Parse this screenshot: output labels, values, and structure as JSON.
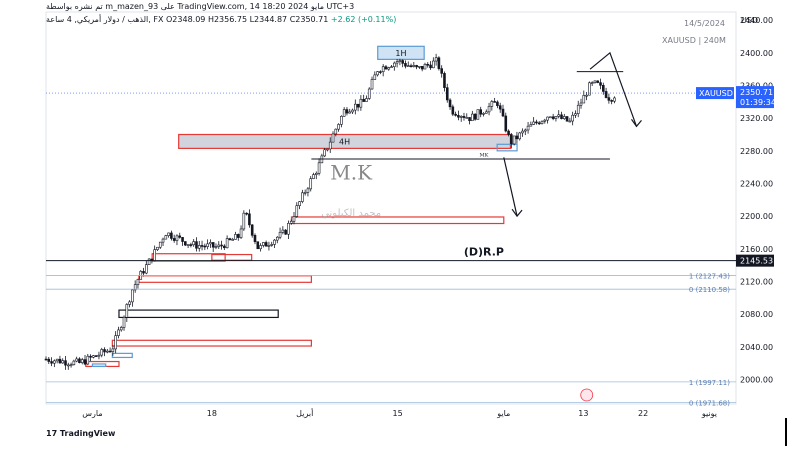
{
  "header": {
    "author_line": "تم نشره بواسطة m_mazen_93 على TradingView.com, 14 مايو 2024 18:20 UTC+3",
    "ohlc_prefix": "الذهب / دولار أمريكي, 4 ساعة, FX",
    "open": "O2348.09",
    "high": "H2356.75",
    "low": "L2344.87",
    "close": "C2350.71",
    "change": "+2.62 (+0.11%)",
    "date_label": "14/5/2024",
    "symbol_label": "XAUUSD | 240M",
    "currency": "USD"
  },
  "footer": {
    "logo_text": "TradingView"
  },
  "colors": {
    "up": "#089981",
    "down": "#f23645",
    "candle": "#131722",
    "zone_red": "#e53935",
    "zone_blue": "#5b9bd5",
    "price_tag": "#2962ff"
  },
  "chart_data": {
    "type": "candlestick",
    "title": "",
    "xlabel": "",
    "ylabel": "USD",
    "ylim": [
      1970,
      2450
    ],
    "y_ticks": [
      2000,
      2040,
      2080,
      2120,
      2160,
      2200,
      2240,
      2280,
      2320,
      2360,
      2400,
      2440
    ],
    "x_ticks": [
      "مارس",
      "18",
      "أبريل",
      "15",
      "مايو",
      "13",
      "22",
      "يونيو"
    ],
    "x_tick_days": [
      -1,
      17,
      31,
      45,
      61,
      73,
      82,
      92
    ],
    "x_range_days": [
      -8,
      96
    ],
    "path_anchors": [
      {
        "day": -8,
        "price": 2025
      },
      {
        "day": -3,
        "price": 2020
      },
      {
        "day": 2,
        "price": 2038
      },
      {
        "day": 3,
        "price": 2060
      },
      {
        "day": 5,
        "price": 2110
      },
      {
        "day": 6,
        "price": 2125
      },
      {
        "day": 8,
        "price": 2150
      },
      {
        "day": 10,
        "price": 2180
      },
      {
        "day": 14,
        "price": 2165
      },
      {
        "day": 18,
        "price": 2162
      },
      {
        "day": 21,
        "price": 2175
      },
      {
        "day": 22,
        "price": 2205
      },
      {
        "day": 24,
        "price": 2160
      },
      {
        "day": 28,
        "price": 2180
      },
      {
        "day": 31,
        "price": 2230
      },
      {
        "day": 33,
        "price": 2260
      },
      {
        "day": 37,
        "price": 2330
      },
      {
        "day": 40,
        "price": 2340
      },
      {
        "day": 42,
        "price": 2380
      },
      {
        "day": 45,
        "price": 2390
      },
      {
        "day": 48,
        "price": 2380
      },
      {
        "day": 51,
        "price": 2390
      },
      {
        "day": 53,
        "price": 2330
      },
      {
        "day": 56,
        "price": 2320
      },
      {
        "day": 60,
        "price": 2340
      },
      {
        "day": 62,
        "price": 2290
      },
      {
        "day": 65,
        "price": 2310
      },
      {
        "day": 68,
        "price": 2325
      },
      {
        "day": 71,
        "price": 2315
      },
      {
        "day": 74,
        "price": 2360
      },
      {
        "day": 75,
        "price": 2362
      },
      {
        "day": 77,
        "price": 2344
      },
      {
        "day": 78,
        "price": 2350.71
      }
    ],
    "last_price": 2350.71,
    "last_price_label": "2350.71",
    "countdown": "01:39:34",
    "symbol_tag": "XAUUSD",
    "level_line": {
      "price": 2145.53,
      "label": "2145.53",
      "text": "(D)R.P"
    },
    "fib_levels": [
      {
        "ratio_label": "1 (2127.43)",
        "price": 2127.43
      },
      {
        "ratio_label": "0 (2110.58)",
        "price": 2110.58
      },
      {
        "ratio_label": "1 (1997.11)",
        "price": 1997.11
      },
      {
        "ratio_label": "0 (1971.68)",
        "price": 1971.68
      }
    ],
    "zones": [
      {
        "kind": "red",
        "d0": 12,
        "d1": 62,
        "p0": 2300,
        "p1": 2283,
        "fill": true,
        "label": "4H"
      },
      {
        "kind": "blue",
        "d0": 42,
        "d1": 49,
        "p0": 2408,
        "p1": 2392,
        "fill": true,
        "label": "1H"
      },
      {
        "kind": "blue",
        "d0": 60,
        "d1": 63,
        "p0": 2288,
        "p1": 2280,
        "fill": false,
        "label": ""
      },
      {
        "kind": "red",
        "d0": 29,
        "d1": 61,
        "p0": 2199,
        "p1": 2191,
        "fill": false,
        "label": ""
      },
      {
        "kind": "red",
        "d0": 8,
        "d1": 19,
        "p0": 2154,
        "p1": 2145,
        "fill": false,
        "label": ""
      },
      {
        "kind": "red",
        "d0": 17,
        "d1": 23,
        "p0": 2153,
        "p1": 2146,
        "fill": false,
        "label": ""
      },
      {
        "kind": "red",
        "d0": 6,
        "d1": 32,
        "p0": 2127,
        "p1": 2119,
        "fill": false,
        "label": ""
      },
      {
        "kind": "black",
        "d0": 3,
        "d1": 27,
        "p0": 2085,
        "p1": 2076,
        "fill": false,
        "label": ""
      },
      {
        "kind": "red",
        "d0": 2,
        "d1": 32,
        "p0": 2048,
        "p1": 2041,
        "fill": false,
        "label": ""
      },
      {
        "kind": "blue",
        "d0": 2,
        "d1": 5,
        "p0": 2032,
        "p1": 2027,
        "fill": false,
        "label": ""
      },
      {
        "kind": "red",
        "d0": -2,
        "d1": 3,
        "p0": 2022,
        "p1": 2016,
        "fill": false,
        "label": ""
      },
      {
        "kind": "blue",
        "d0": -1,
        "d1": 1,
        "p0": 2019,
        "p1": 2016,
        "fill": false,
        "label": ""
      }
    ],
    "hlines": [
      {
        "d0": 32,
        "d1": 77,
        "price": 2270
      },
      {
        "d0": 72,
        "d1": 79,
        "price": 2377
      }
    ],
    "arrows": [
      {
        "from": [
          74,
          2380
        ],
        "mid": [
          77,
          2400
        ],
        "to": [
          81,
          2310
        ]
      },
      {
        "from": [
          61,
          2272
        ],
        "mid": [
          61,
          2272
        ],
        "to": [
          63,
          2200
        ]
      }
    ],
    "annotations": [
      {
        "text": "M.K",
        "day": 38,
        "price": 2245,
        "style": "watermark"
      },
      {
        "text": "محمد الكيلوني",
        "day": 38,
        "price": 2200,
        "style": "watermark-small"
      },
      {
        "text": "MK",
        "day": 58,
        "price": 2273,
        "style": "tiny"
      }
    ]
  }
}
